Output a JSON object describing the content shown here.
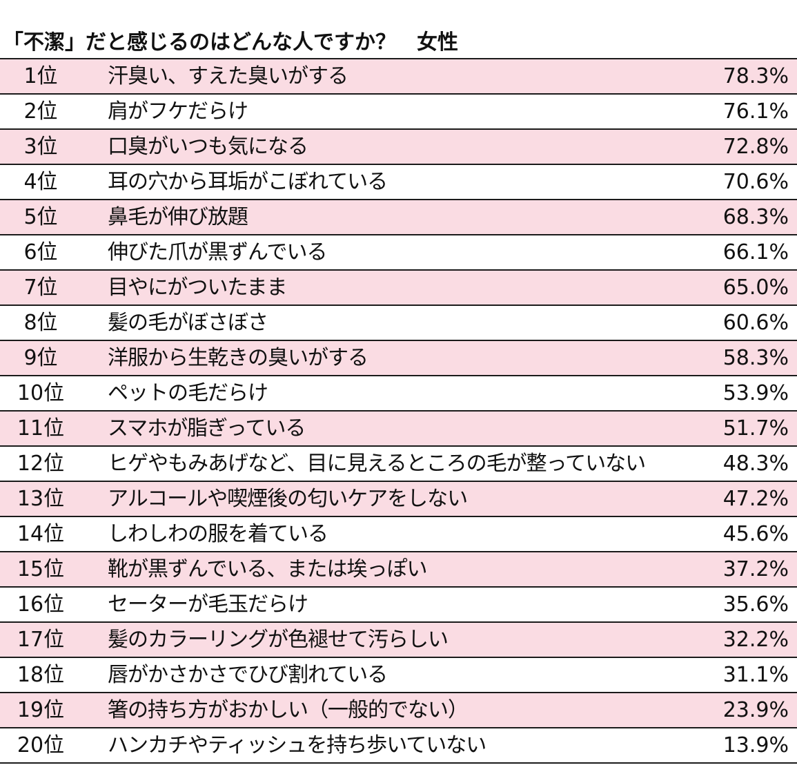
{
  "title": "「不潔」だと感じるのはどんな人ですか？　女性",
  "rows": [
    {
      "rank": "1位",
      "item": "汗臭い、すえた臭いがする",
      "percent": "78.3%"
    },
    {
      "rank": "2位",
      "item": "肩がフケだらけ",
      "percent": "76.1%"
    },
    {
      "rank": "3位",
      "item": "口臭がいつも気になる",
      "percent": "72.8%"
    },
    {
      "rank": "4位",
      "item": "耳の穴から耳垢がこぼれている",
      "percent": "70.6%"
    },
    {
      "rank": "5位",
      "item": "鼻毛が伸び放題",
      "percent": "68.3%"
    },
    {
      "rank": "6位",
      "item": "伸びた爪が黒ずんでいる",
      "percent": "66.1%"
    },
    {
      "rank": "7位",
      "item": "目やにがついたまま",
      "percent": "65.0%"
    },
    {
      "rank": "8位",
      "item": "髪の毛がぼさぼさ",
      "percent": "60.6%"
    },
    {
      "rank": "9位",
      "item": "洋服から生乾きの臭いがする",
      "percent": "58.3%"
    },
    {
      "rank": "10位",
      "item": "ペットの毛だらけ",
      "percent": "53.9%"
    },
    {
      "rank": "11位",
      "item": "スマホが脂ぎっている",
      "percent": "51.7%"
    },
    {
      "rank": "12位",
      "item": "ヒゲやもみあげなど、目に見えるところの毛が整っていない",
      "percent": "48.3%"
    },
    {
      "rank": "13位",
      "item": "アルコールや喫煙後の匂いケアをしない",
      "percent": "47.2%"
    },
    {
      "rank": "14位",
      "item": "しわしわの服を着ている",
      "percent": "45.6%"
    },
    {
      "rank": "15位",
      "item": "靴が黒ずんでいる、または埃っぽい",
      "percent": "37.2%"
    },
    {
      "rank": "16位",
      "item": "セーターが毛玉だらけ",
      "percent": "35.6%"
    },
    {
      "rank": "17位",
      "item": "髪のカラーリングが色褪せて汚らしい",
      "percent": "32.2%"
    },
    {
      "rank": "18位",
      "item": "唇がかさかさでひび割れている",
      "percent": "31.1%"
    },
    {
      "rank": "19位",
      "item": "箸の持ち方がおかしい（一般的でない）",
      "percent": "23.9%"
    },
    {
      "rank": "20位",
      "item": "ハンカチやティッシュを持ち歩いていない",
      "percent": "13.9%"
    }
  ],
  "colors": {
    "stripe": "#fadce3",
    "rule": "#1a1a1a",
    "text": "#111111"
  }
}
